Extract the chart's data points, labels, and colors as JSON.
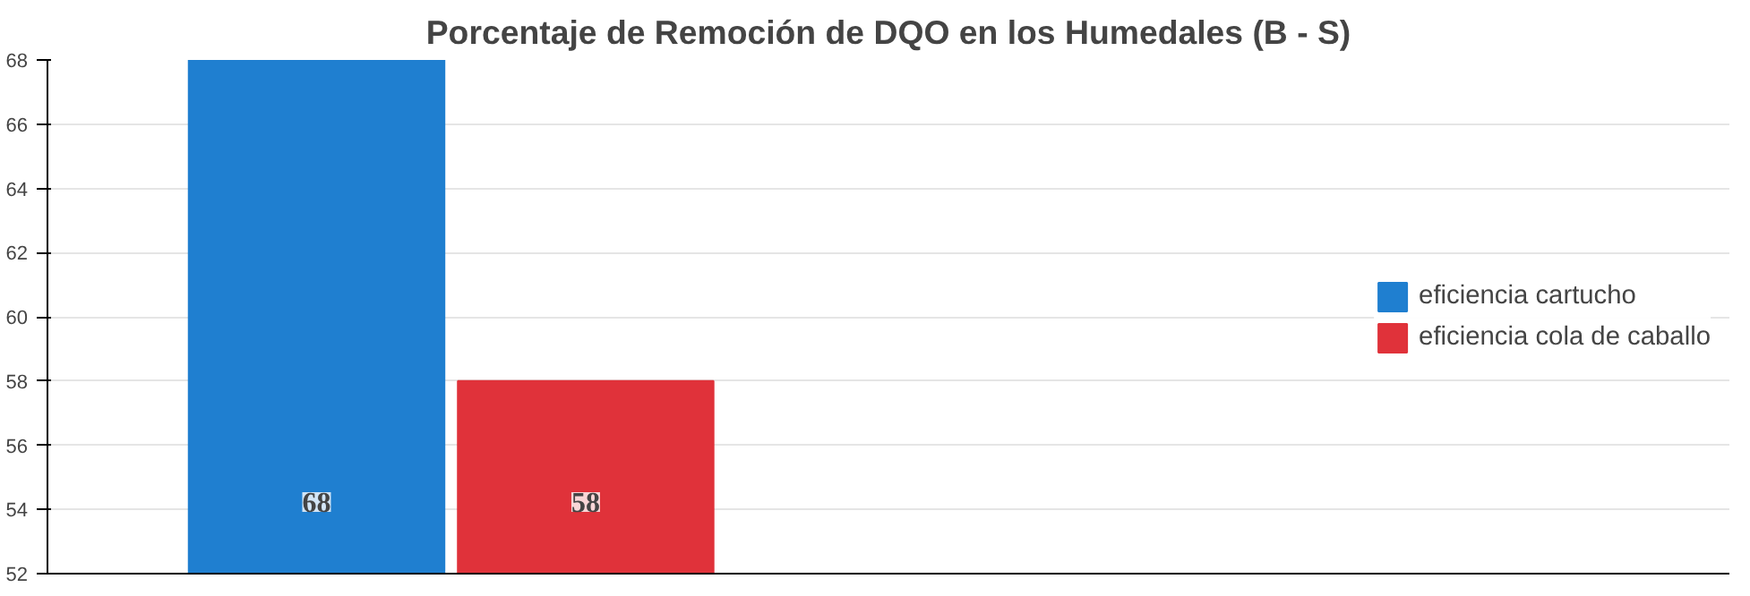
{
  "chart_data": {
    "type": "bar",
    "title": "Porcentaje de Remoción de DQO en los Humedales (B - S)",
    "categories": [
      null
    ],
    "series": [
      {
        "name": "eficiencia cartucho",
        "color": "#1f7fd0",
        "values": [
          68
        ]
      },
      {
        "name": "eficiencia cola de caballo",
        "color": "#e0323a",
        "values": [
          58
        ]
      }
    ],
    "ylim": [
      52,
      68
    ],
    "yticks": [
      52,
      54,
      56,
      58,
      60,
      62,
      64,
      66,
      68
    ],
    "grid": "y",
    "legend": "right",
    "data_labels": true,
    "tick_labels": "y"
  }
}
